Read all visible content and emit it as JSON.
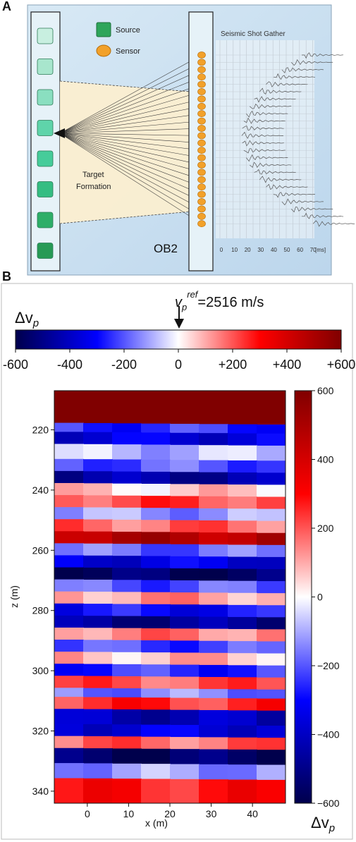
{
  "panel_a": {
    "letter": "A",
    "legend": {
      "source_label": "Source",
      "sensor_label": "Sensor"
    },
    "gather_title": "Seismic Shot Gather",
    "target_label_line1": "Target",
    "target_label_line2": "Formation",
    "well_label": "OB2",
    "time_ticks": [
      "0",
      "10",
      "20",
      "30",
      "40",
      "50",
      "60",
      "70"
    ],
    "time_unit": "[ms]",
    "colors": {
      "background": "#cfe3f2",
      "source": "#2ea55a",
      "sensor": "#f2a12a",
      "formation": "#fbeed0"
    }
  },
  "panel_b": {
    "letter": "B",
    "top_colorbar": {
      "label_main": "Δv",
      "label_sub": "p",
      "ref_main": "v",
      "ref_sub": "p",
      "ref_sup": "ref",
      "ref_value": "=2516 m/s",
      "ticks": [
        "-600",
        "-400",
        "-200",
        "0",
        "+200",
        "+400",
        "+600"
      ]
    },
    "side_colorbar": {
      "ticks": [
        "600",
        "400",
        "200",
        "0",
        "−200",
        "−400",
        "−600"
      ],
      "label_main": "Δv",
      "label_sub": "p"
    }
  },
  "chart_data": {
    "type": "heatmap",
    "xlabel": "x (m)",
    "ylabel": "z (m)",
    "xlim": [
      -8,
      48
    ],
    "ylim": [
      344,
      207
    ],
    "x_ticks": [
      0,
      10,
      20,
      30,
      40
    ],
    "y_ticks": [
      220,
      240,
      260,
      280,
      300,
      320,
      340
    ],
    "value_range": [
      -600,
      600
    ],
    "colormap": "seismic (blue-white-red)",
    "layers": [
      {
        "z": [
          207,
          218
        ],
        "dv": 600
      },
      {
        "z": [
          218,
          221
        ],
        "dv": -250
      },
      {
        "z": [
          221,
          225
        ],
        "dv": -350
      },
      {
        "z": [
          225,
          230
        ],
        "dv": -80
      },
      {
        "z": [
          230,
          234
        ],
        "dv": -200
      },
      {
        "z": [
          234,
          238
        ],
        "dv": -450
      },
      {
        "z": [
          238,
          242
        ],
        "dv": 50
      },
      {
        "z": [
          242,
          246
        ],
        "dv": 220
      },
      {
        "z": [
          246,
          250
        ],
        "dv": -120
      },
      {
        "z": [
          250,
          254
        ],
        "dv": 180
      },
      {
        "z": [
          254,
          258
        ],
        "dv": 480
      },
      {
        "z": [
          258,
          262
        ],
        "dv": -180
      },
      {
        "z": [
          262,
          266
        ],
        "dv": -350
      },
      {
        "z": [
          266,
          270
        ],
        "dv": -560
      },
      {
        "z": [
          270,
          274
        ],
        "dv": -200
      },
      {
        "z": [
          274,
          278
        ],
        "dv": 120
      },
      {
        "z": [
          278,
          282
        ],
        "dv": -300
      },
      {
        "z": [
          282,
          286
        ],
        "dv": -480
      },
      {
        "z": [
          286,
          290
        ],
        "dv": 150
      },
      {
        "z": [
          290,
          294
        ],
        "dv": -220
      },
      {
        "z": [
          294,
          298
        ],
        "dv": 80
      },
      {
        "z": [
          298,
          302
        ],
        "dv": -250
      },
      {
        "z": [
          302,
          306
        ],
        "dv": 200
      },
      {
        "z": [
          306,
          309
        ],
        "dv": -150
      },
      {
        "z": [
          309,
          313
        ],
        "dv": 250
      },
      {
        "z": [
          313,
          318
        ],
        "dv": -420
      },
      {
        "z": [
          318,
          322
        ],
        "dv": -350
      },
      {
        "z": [
          322,
          326
        ],
        "dv": 180
      },
      {
        "z": [
          326,
          331
        ],
        "dv": -560
      },
      {
        "z": [
          331,
          336
        ],
        "dv": -120
      },
      {
        "z": [
          336,
          344
        ],
        "dv": 280
      }
    ]
  }
}
